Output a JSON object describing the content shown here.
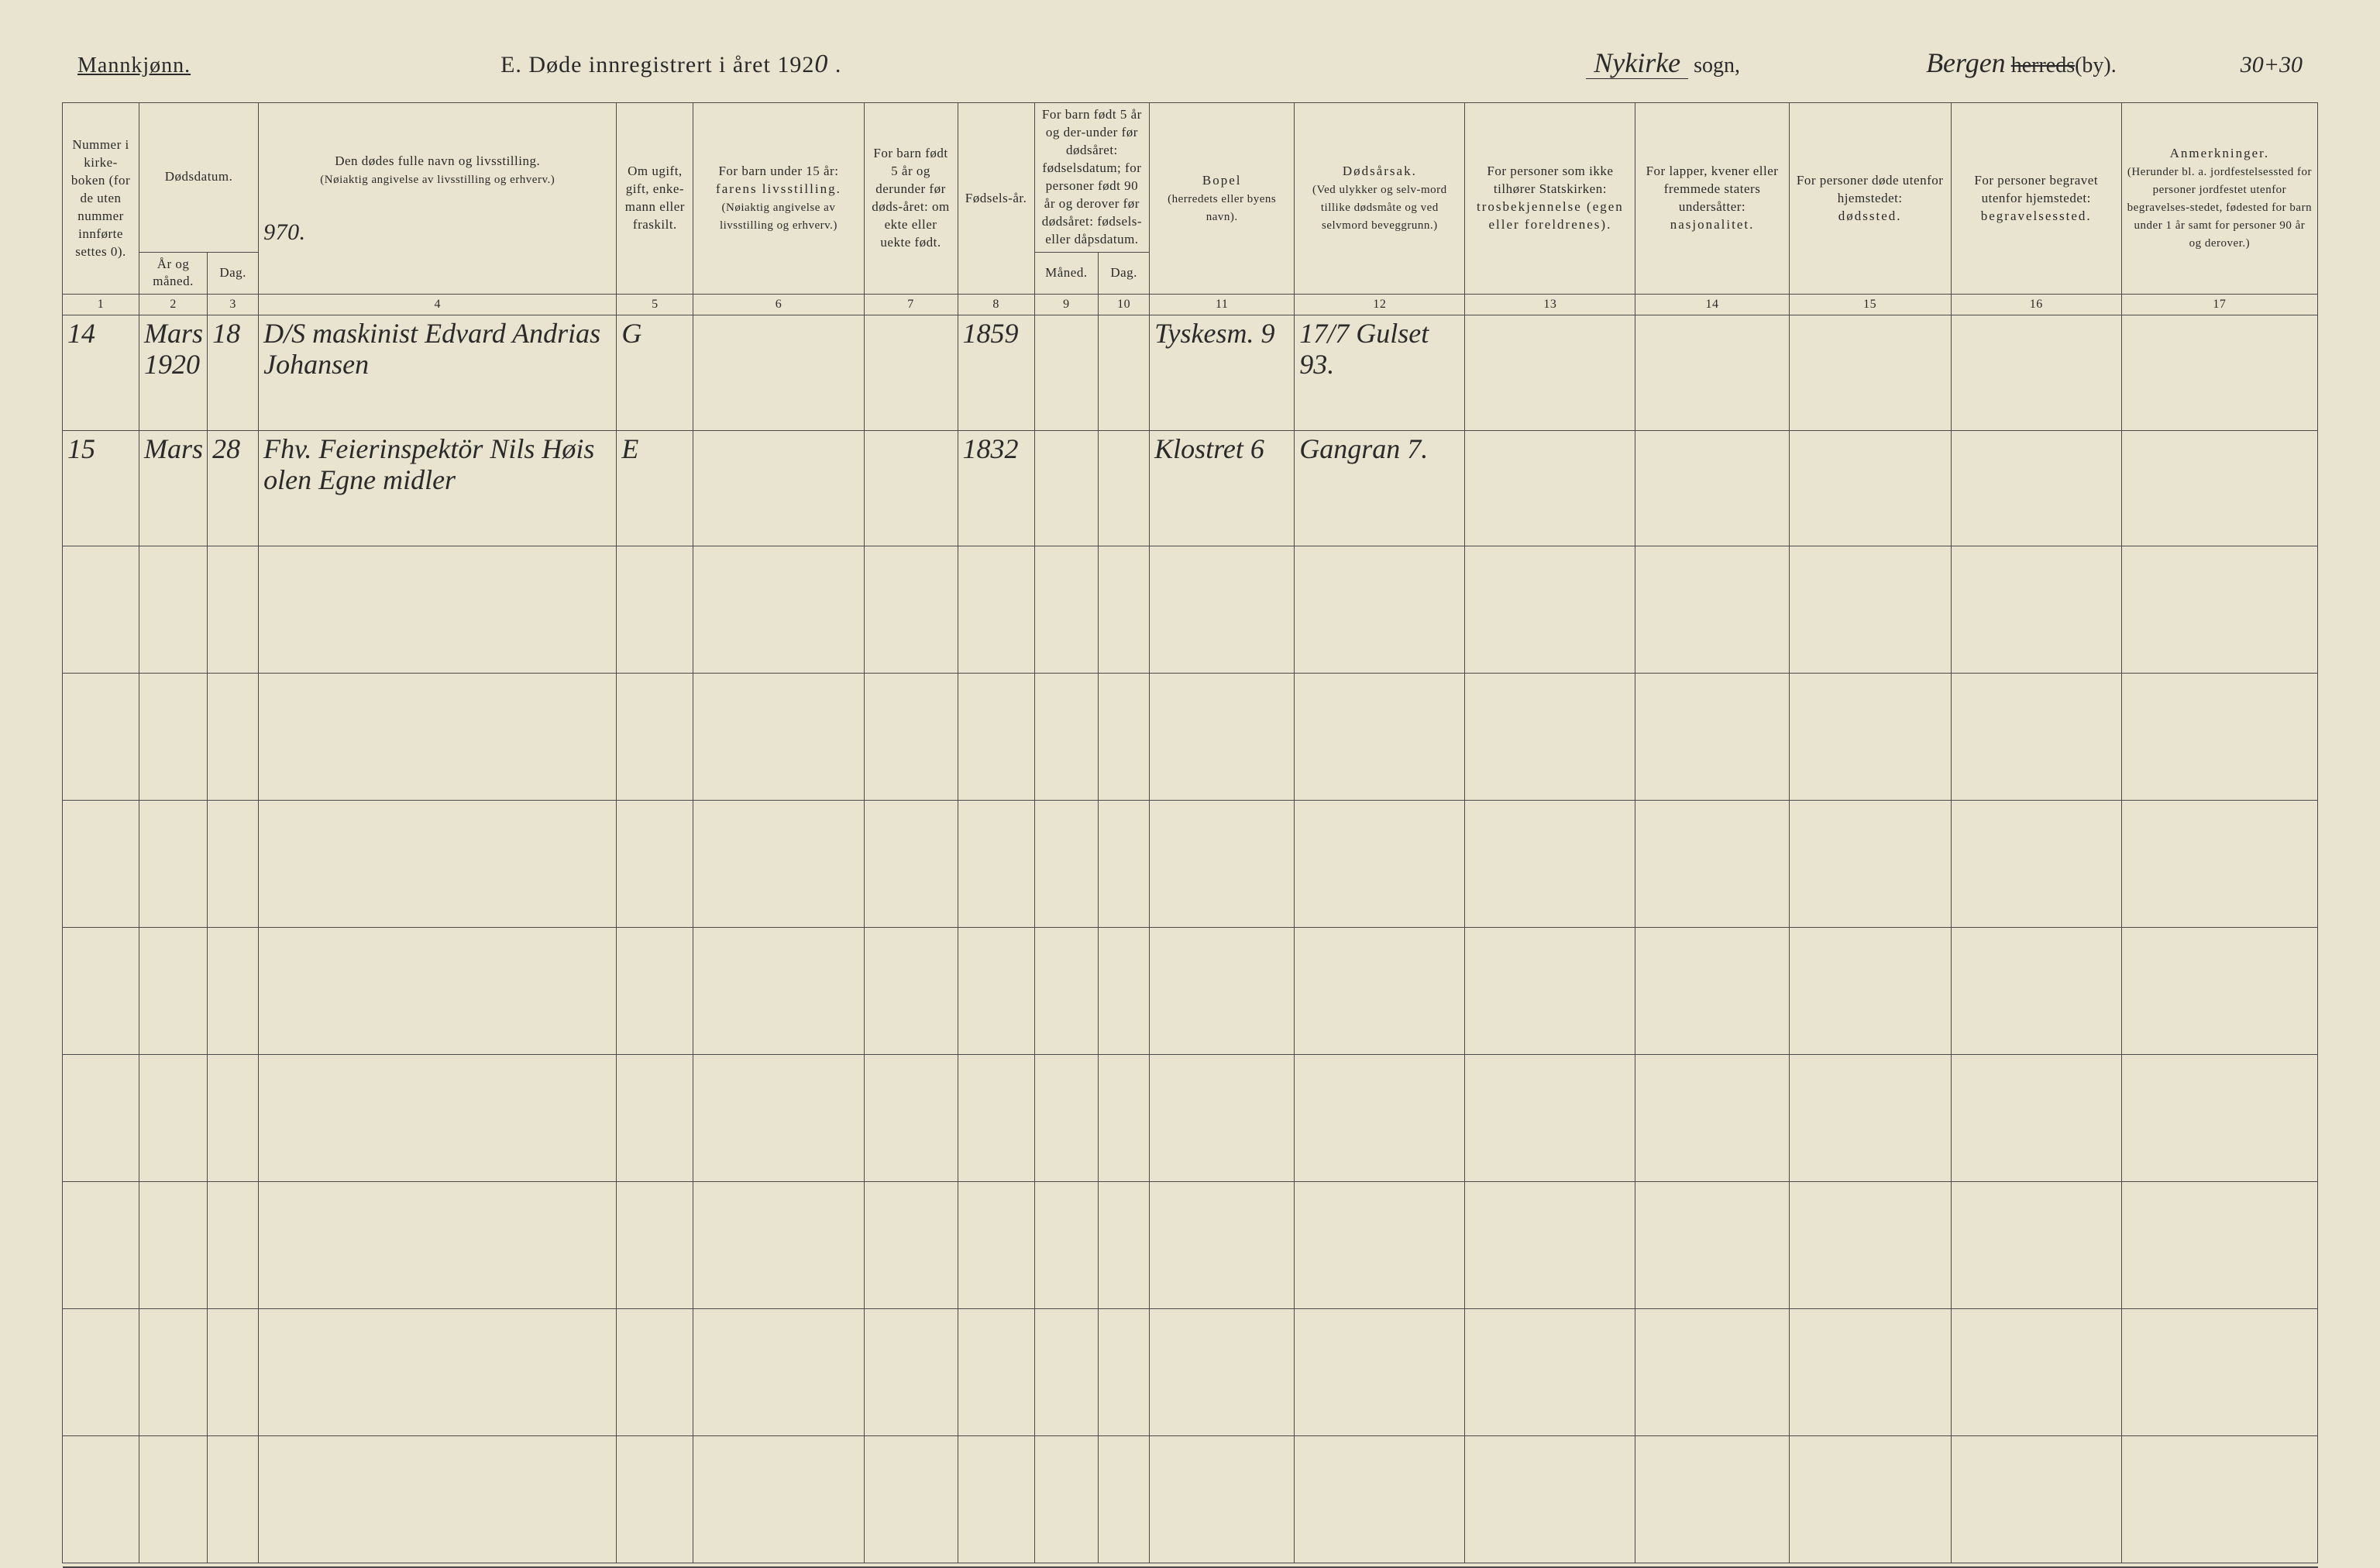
{
  "header": {
    "gender": "Mannkjønn.",
    "title_prefix": "E.   Døde innregistrert i året 192",
    "title_year_hand": "0",
    "title_suffix": " .",
    "sogn_hand": "Nykirke",
    "sogn_suffix": " sogn,",
    "herred_hand": "Bergen",
    "herred_strike": "herreds",
    "herred_suffix": "(by).",
    "page_num": "30+30"
  },
  "columns": {
    "c1": "Nummer i kirke-boken (for de uten nummer innførte settes 0).",
    "c2_3_top": "Dødsdatum.",
    "c2": "År og måned.",
    "c3": "Dag.",
    "c4_top": "Den dødes fulle navn og livsstilling.",
    "c4_sub": "(Nøiaktig angivelse av livsstilling og erhverv.)",
    "c4_hand": "970.",
    "c5": "Om ugift, gift, enke-mann eller fraskilt.",
    "c6_top": "For barn under 15 år:",
    "c6_mid": "farens livsstilling.",
    "c6_sub": "(Nøiaktig angivelse av livsstilling og erhverv.)",
    "c7": "For barn født 5 år og derunder før døds-året: om ekte eller uekte født.",
    "c8": "Fødsels-år.",
    "c9_10_top": "For barn født 5 år og der-under før dødsåret: fødselsdatum; for personer født 90 år og derover før dødsåret: fødsels- eller dåpsdatum.",
    "c9": "Måned.",
    "c10": "Dag.",
    "c11_top": "Bopel",
    "c11_sub": "(herredets eller byens navn).",
    "c12_top": "Dødsårsak.",
    "c12_sub": "(Ved ulykker og selv-mord tillike dødsmåte og ved selvmord beveggrunn.)",
    "c13_top": "For personer som ikke tilhører Statskirken:",
    "c13_sub": "trosbekjennelse (egen eller foreldrenes).",
    "c14_top": "For lapper, kvener eller fremmede staters undersåtter:",
    "c14_sub": "nasjonalitet.",
    "c15_top": "For personer døde utenfor hjemstedet:",
    "c15_sub": "dødssted.",
    "c16_top": "For personer begravet utenfor hjemstedet:",
    "c16_sub": "begravelsessted.",
    "c17_top": "Anmerkninger.",
    "c17_sub": "(Herunder bl. a. jordfestelsessted for personer jordfestet utenfor begravelses-stedet, fødested for barn under 1 år samt for personer 90 år og derover.)"
  },
  "colnums": [
    "1",
    "2",
    "3",
    "4",
    "5",
    "6",
    "7",
    "8",
    "9",
    "10",
    "11",
    "12",
    "13",
    "14",
    "15",
    "16",
    "17"
  ],
  "rows": [
    {
      "num": "14",
      "year_month": "Mars 1920",
      "day": "18",
      "name": "D/S maskinist Edvard Andrias Johansen",
      "status": "G",
      "col6": "",
      "col7": "",
      "birth_year": "1859",
      "col9": "",
      "col10": "",
      "bopel": "Tyskesm. 9",
      "cause": "17/7 Gulset 93.",
      "c13": "",
      "c14": "",
      "c15": "",
      "c16": "",
      "c17": ""
    },
    {
      "num": "15",
      "year_month": "Mars",
      "day": "28",
      "name": "Fhv. Feierinspektör Nils Høis olen Egne midler",
      "status": "E",
      "col6": "",
      "col7": "",
      "birth_year": "1832",
      "col9": "",
      "col10": "",
      "bopel": "Klostret 6",
      "cause": "Gangran 7.",
      "c13": "",
      "c14": "",
      "c15": "",
      "c16": "",
      "c17": ""
    }
  ],
  "blank_rows": 8
}
